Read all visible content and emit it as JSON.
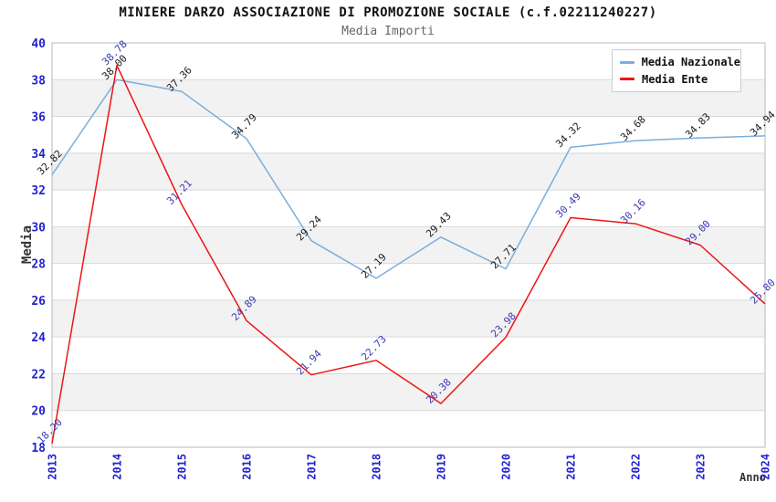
{
  "header": {
    "title": "MINIERE DARZO ASSOCIAZIONE DI PROMOZIONE SOCIALE (c.f.02211240227)",
    "subtitle": "Media Importi"
  },
  "chart_data": {
    "type": "line",
    "title": "MINIERE DARZO ASSOCIAZIONE DI PROMOZIONE SOCIALE (c.f.02211240227)",
    "subtitle": "Media Importi",
    "xlabel": "Anno",
    "ylabel": "Media",
    "x": [
      "2013",
      "2014",
      "2015",
      "2016",
      "2017",
      "2018",
      "2019",
      "2020",
      "2021",
      "2022",
      "2023",
      "2024"
    ],
    "ylim": [
      18,
      40
    ],
    "ytick_step": 2,
    "grid": true,
    "legend_position": "top-right",
    "series": [
      {
        "name": "Media Nazionale",
        "color": "#7aaede",
        "label_color": "#1c1c1c",
        "values": [
          32.82,
          38.0,
          37.36,
          34.79,
          29.24,
          27.19,
          29.43,
          27.71,
          34.32,
          34.68,
          34.83,
          34.94
        ]
      },
      {
        "name": "Media Ente",
        "color": "#ee1414",
        "label_color": "#3a3ab5",
        "values": [
          18.2,
          38.78,
          31.21,
          24.89,
          21.94,
          22.73,
          20.38,
          23.98,
          30.49,
          30.16,
          29.0,
          25.8
        ]
      }
    ],
    "colors": {
      "tick_label": "#2323cd",
      "grid_line": "#d9d9d9",
      "band_fill": "#f2f2f2",
      "plot_border": "#b8b8b8"
    }
  }
}
